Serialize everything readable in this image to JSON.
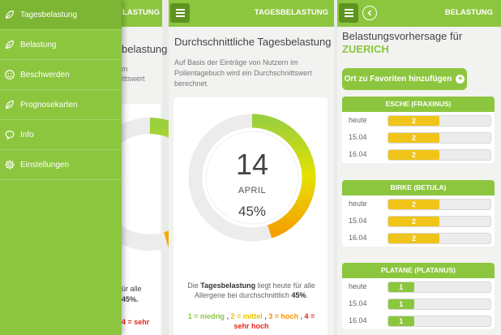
{
  "screen1": {
    "header_title": "TAGESBELASTUNG",
    "heading_partial": "belastung",
    "desc_partial_1": "m",
    "desc_partial_2": "ittswert",
    "summary_partial_1": "ür alle",
    "summary_partial_2": "45%.",
    "legend_partial": "4 = sehr"
  },
  "drawer": {
    "items": [
      {
        "label": "Tagesbelastung",
        "icon": "leaf-icon",
        "active": true
      },
      {
        "label": "Belastung",
        "icon": "leaf-icon",
        "active": false
      },
      {
        "label": "Beschwerden",
        "icon": "smiley-icon",
        "active": false
      },
      {
        "label": "Prognosekarten",
        "icon": "leaf-icon",
        "active": false
      },
      {
        "label": "Info",
        "icon": "speech-bubble-icon",
        "active": false
      },
      {
        "label": "Einstellungen",
        "icon": "gear-icon",
        "active": false
      }
    ]
  },
  "screen2": {
    "header_title": "TAGESBELASTUNG",
    "heading": "Durchschnittliche Tagesbelastung",
    "description": "Auf Basis der Einträge von Nutzern im Pollentagebuch wird ein Durchschnittswert berechnet.",
    "day": "14",
    "month": "APRIL",
    "percent_label": "45%",
    "percent_value": 0.45,
    "summary_prefix": "Die ",
    "summary_bold": "Tagesbelastung",
    "summary_middle": " liegt heute für alle Allergene bei durchschnittlich ",
    "summary_value": "45%",
    "summary_suffix": ".",
    "legend": [
      {
        "text": "1 = niedrig",
        "color": "#8cc63f"
      },
      {
        "text": "2 = mittel",
        "color": "#e6c200"
      },
      {
        "text": "3 = hoch",
        "color": "#f39200"
      },
      {
        "text": "4 = sehr hoch",
        "color": "#e2261c"
      }
    ]
  },
  "screen3": {
    "header_title": "BELASTUNG",
    "heading": "Belastungsvorhersage für",
    "city": "ZUERICH",
    "fav_button": "Ort zu Favoriten hinzufügen",
    "plants": [
      {
        "name": "ESCHE (FRAXINUS)",
        "rows": [
          {
            "label": "heute",
            "value": "2",
            "level": 2
          },
          {
            "label": "15.04",
            "value": "2",
            "level": 2
          },
          {
            "label": "16.04",
            "value": "2",
            "level": 2
          }
        ]
      },
      {
        "name": "BIRKE (BETULA)",
        "rows": [
          {
            "label": "heute",
            "value": "2",
            "level": 2
          },
          {
            "label": "15.04",
            "value": "2",
            "level": 2
          },
          {
            "label": "16.04",
            "value": "2",
            "level": 2
          }
        ]
      },
      {
        "name": "PLATANE (PLATANUS)",
        "rows": [
          {
            "label": "heute",
            "value": "1",
            "level": 1
          },
          {
            "label": "15.04",
            "value": "1",
            "level": 1
          },
          {
            "label": "16.04",
            "value": "1",
            "level": 1
          }
        ]
      }
    ],
    "max_level": 4,
    "level_colors": {
      "1": "#8cc63f",
      "2": "#f0c419",
      "3": "#f39200",
      "4": "#e2261c"
    }
  }
}
